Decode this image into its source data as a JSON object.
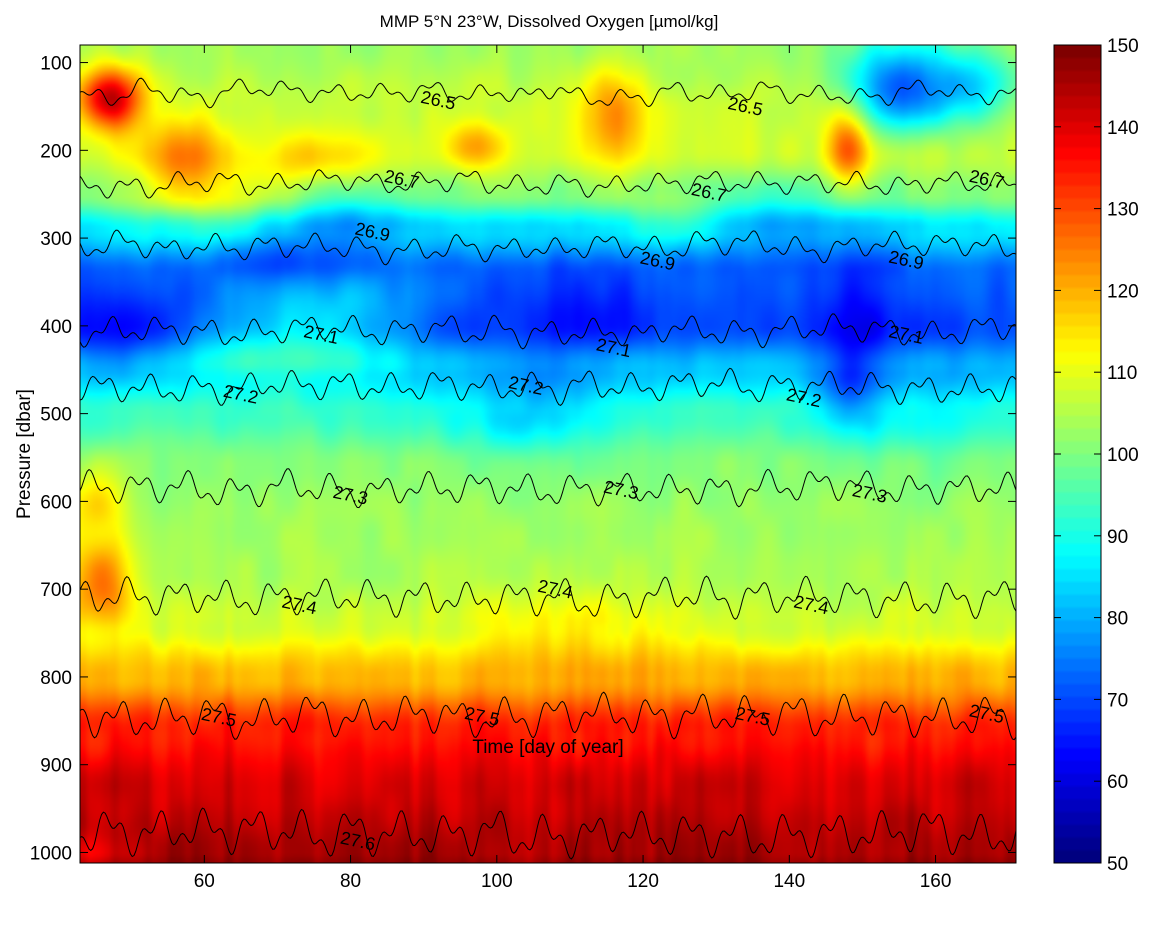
{
  "chart_data": {
    "type": "heatmap",
    "title": "MMP 5°N 23°W, Dissolved Oxygen [µmol/kg]",
    "xlabel": "Time [day of year]",
    "ylabel": "Pressure [dbar]",
    "xlim": [
      43,
      171
    ],
    "ylim": [
      80,
      1012
    ],
    "y_reversed": true,
    "xticks": [
      60,
      80,
      100,
      120,
      140,
      160
    ],
    "yticks": [
      100,
      200,
      300,
      400,
      500,
      600,
      700,
      800,
      900,
      1000
    ],
    "colorbar": {
      "label": "",
      "colormap": "jet",
      "clim": [
        50,
        150
      ],
      "ticks": [
        50,
        60,
        70,
        80,
        90,
        100,
        110,
        120,
        130,
        140,
        150
      ]
    },
    "oxygen_profile": [
      {
        "p": 80,
        "o2": 103
      },
      {
        "p": 150,
        "o2": 107
      },
      {
        "p": 200,
        "o2": 108
      },
      {
        "p": 250,
        "o2": 100
      },
      {
        "p": 290,
        "o2": 85
      },
      {
        "p": 340,
        "o2": 72
      },
      {
        "p": 400,
        "o2": 70
      },
      {
        "p": 450,
        "o2": 82
      },
      {
        "p": 500,
        "o2": 93
      },
      {
        "p": 560,
        "o2": 101
      },
      {
        "p": 620,
        "o2": 103
      },
      {
        "p": 680,
        "o2": 104
      },
      {
        "p": 740,
        "o2": 108
      },
      {
        "p": 800,
        "o2": 120
      },
      {
        "p": 860,
        "o2": 135
      },
      {
        "p": 930,
        "o2": 142
      },
      {
        "p": 1000,
        "o2": 146
      },
      {
        "p": 1012,
        "o2": 148
      }
    ],
    "anomalies": [
      {
        "day": 47,
        "p": 140,
        "amp": 38,
        "sday": 3,
        "sp": 25
      },
      {
        "day": 57,
        "p": 205,
        "amp": 18,
        "sday": 4,
        "sp": 30
      },
      {
        "day": 75,
        "p": 215,
        "amp": 10,
        "sday": 6,
        "sp": 25
      },
      {
        "day": 97,
        "p": 195,
        "amp": 14,
        "sday": 3,
        "sp": 20
      },
      {
        "day": 116,
        "p": 160,
        "amp": 18,
        "sday": 3,
        "sp": 40
      },
      {
        "day": 148,
        "p": 195,
        "amp": 22,
        "sday": 2,
        "sp": 35
      },
      {
        "day": 155,
        "p": 130,
        "amp": -35,
        "sday": 5,
        "sp": 35
      },
      {
        "day": 165,
        "p": 130,
        "amp": -20,
        "sday": 4,
        "sp": 30
      },
      {
        "day": 60,
        "p": 260,
        "amp": 10,
        "sday": 8,
        "sp": 30
      },
      {
        "day": 80,
        "p": 270,
        "amp": -10,
        "sday": 6,
        "sp": 25
      },
      {
        "day": 135,
        "p": 275,
        "amp": -12,
        "sday": 8,
        "sp": 25
      },
      {
        "day": 73,
        "p": 320,
        "amp": -8,
        "sday": 6,
        "sp": 25
      },
      {
        "day": 48,
        "p": 405,
        "amp": -8,
        "sday": 6,
        "sp": 35
      },
      {
        "day": 76,
        "p": 375,
        "amp": 12,
        "sday": 9,
        "sp": 30
      },
      {
        "day": 72,
        "p": 430,
        "amp": 14,
        "sday": 10,
        "sp": 25
      },
      {
        "day": 127,
        "p": 280,
        "amp": 12,
        "sday": 6,
        "sp": 20
      },
      {
        "day": 112,
        "p": 380,
        "amp": -6,
        "sday": 8,
        "sp": 40
      },
      {
        "day": 150,
        "p": 400,
        "amp": -8,
        "sday": 4,
        "sp": 60
      },
      {
        "day": 148,
        "p": 480,
        "amp": -12,
        "sday": 3,
        "sp": 40
      },
      {
        "day": 105,
        "p": 500,
        "amp": -10,
        "sday": 8,
        "sp": 40
      },
      {
        "day": 160,
        "p": 500,
        "amp": -5,
        "sday": 6,
        "sp": 50
      },
      {
        "day": 45,
        "p": 600,
        "amp": 12,
        "sday": 3,
        "sp": 30
      },
      {
        "day": 46,
        "p": 690,
        "amp": 22,
        "sday": 3,
        "sp": 35
      },
      {
        "day": 110,
        "p": 740,
        "amp": 6,
        "sday": 10,
        "sp": 30
      },
      {
        "day": 45,
        "p": 1000,
        "amp": -8,
        "sday": 4,
        "sp": 15
      }
    ],
    "contours": [
      {
        "label": "26.5",
        "base_p": 135,
        "label_pos": [
          {
            "day": 92,
            "p": 143
          },
          {
            "day": 134,
            "p": 150
          }
        ]
      },
      {
        "label": "26.7",
        "base_p": 238,
        "label_pos": [
          {
            "day": 87,
            "p": 233
          },
          {
            "day": 129,
            "p": 248
          },
          {
            "day": 167,
            "p": 233
          }
        ]
      },
      {
        "label": "26.9",
        "base_p": 310,
        "label_pos": [
          {
            "day": 83,
            "p": 293
          },
          {
            "day": 122,
            "p": 326
          },
          {
            "day": 156,
            "p": 325
          }
        ]
      },
      {
        "label": "27.1",
        "base_p": 405,
        "label_pos": [
          {
            "day": 76,
            "p": 410
          },
          {
            "day": 116,
            "p": 425
          },
          {
            "day": 156,
            "p": 410
          }
        ]
      },
      {
        "label": "27.2",
        "base_p": 470,
        "label_pos": [
          {
            "day": 65,
            "p": 478
          },
          {
            "day": 104,
            "p": 468
          },
          {
            "day": 142,
            "p": 482
          }
        ]
      },
      {
        "label": "27.3",
        "base_p": 585,
        "label_pos": [
          {
            "day": 80,
            "p": 593
          },
          {
            "day": 117,
            "p": 587
          },
          {
            "day": 151,
            "p": 591
          }
        ]
      },
      {
        "label": "27.4",
        "base_p": 710,
        "label_pos": [
          {
            "day": 73,
            "p": 718
          },
          {
            "day": 108,
            "p": 700
          },
          {
            "day": 143,
            "p": 718
          }
        ]
      },
      {
        "label": "27.5",
        "base_p": 845,
        "label_pos": [
          {
            "day": 62,
            "p": 846
          },
          {
            "day": 98,
            "p": 845
          },
          {
            "day": 135,
            "p": 845
          },
          {
            "day": 167,
            "p": 842
          }
        ]
      },
      {
        "label": "27.6",
        "base_p": 978,
        "label_pos": [
          {
            "day": 81,
            "p": 987
          }
        ]
      }
    ]
  }
}
